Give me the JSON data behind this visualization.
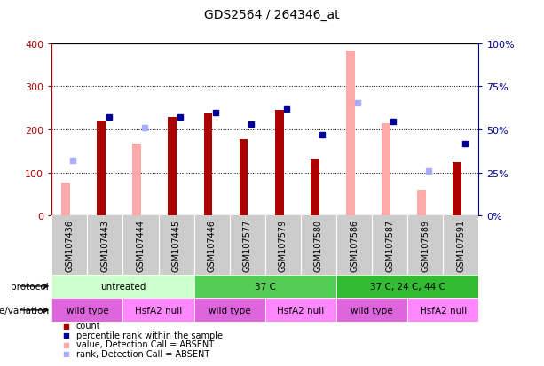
{
  "title": "GDS2564 / 264346_at",
  "samples": [
    "GSM107436",
    "GSM107443",
    "GSM107444",
    "GSM107445",
    "GSM107446",
    "GSM107577",
    "GSM107579",
    "GSM107580",
    "GSM107586",
    "GSM107587",
    "GSM107589",
    "GSM107591"
  ],
  "count_values": [
    null,
    220,
    null,
    228,
    237,
    178,
    245,
    133,
    null,
    null,
    null,
    124
  ],
  "count_absent_values": [
    77,
    null,
    168,
    null,
    null,
    null,
    null,
    null,
    382,
    215,
    61,
    null
  ],
  "rank_values": [
    null,
    57,
    null,
    57,
    60,
    53,
    62,
    47,
    null,
    54.5,
    null,
    42
  ],
  "rank_absent_values": [
    32,
    null,
    51,
    null,
    null,
    null,
    null,
    null,
    65.5,
    null,
    26,
    null
  ],
  "ylim_left": [
    0,
    400
  ],
  "ylim_right": [
    0,
    100
  ],
  "yticks_left": [
    0,
    100,
    200,
    300,
    400
  ],
  "yticks_right": [
    0,
    25,
    50,
    75,
    100
  ],
  "ytick_labels_right": [
    "0%",
    "25%",
    "50%",
    "75%",
    "100%"
  ],
  "protocol_groups": [
    {
      "label": "untreated",
      "start": 0,
      "end": 4,
      "color": "#ccffcc"
    },
    {
      "label": "37 C",
      "start": 4,
      "end": 8,
      "color": "#55cc55"
    },
    {
      "label": "37 C, 24 C, 44 C",
      "start": 8,
      "end": 12,
      "color": "#33bb33"
    }
  ],
  "genotype_groups": [
    {
      "label": "wild type",
      "start": 0,
      "end": 2,
      "color": "#dd66dd"
    },
    {
      "label": "HsfA2 null",
      "start": 2,
      "end": 4,
      "color": "#ff88ff"
    },
    {
      "label": "wild type",
      "start": 4,
      "end": 6,
      "color": "#dd66dd"
    },
    {
      "label": "HsfA2 null",
      "start": 6,
      "end": 8,
      "color": "#ff88ff"
    },
    {
      "label": "wild type",
      "start": 8,
      "end": 10,
      "color": "#dd66dd"
    },
    {
      "label": "HsfA2 null",
      "start": 10,
      "end": 12,
      "color": "#ff88ff"
    }
  ],
  "color_count": "#aa0000",
  "color_rank": "#000099",
  "color_count_absent": "#ffaaaa",
  "color_rank_absent": "#aaaaff",
  "legend_items": [
    {
      "label": "count",
      "color": "#aa0000",
      "marker": "s"
    },
    {
      "label": "percentile rank within the sample",
      "color": "#000099",
      "marker": "s"
    },
    {
      "label": "value, Detection Call = ABSENT",
      "color": "#ffaaaa",
      "marker": "s"
    },
    {
      "label": "rank, Detection Call = ABSENT",
      "color": "#aaaaff",
      "marker": "s"
    }
  ]
}
